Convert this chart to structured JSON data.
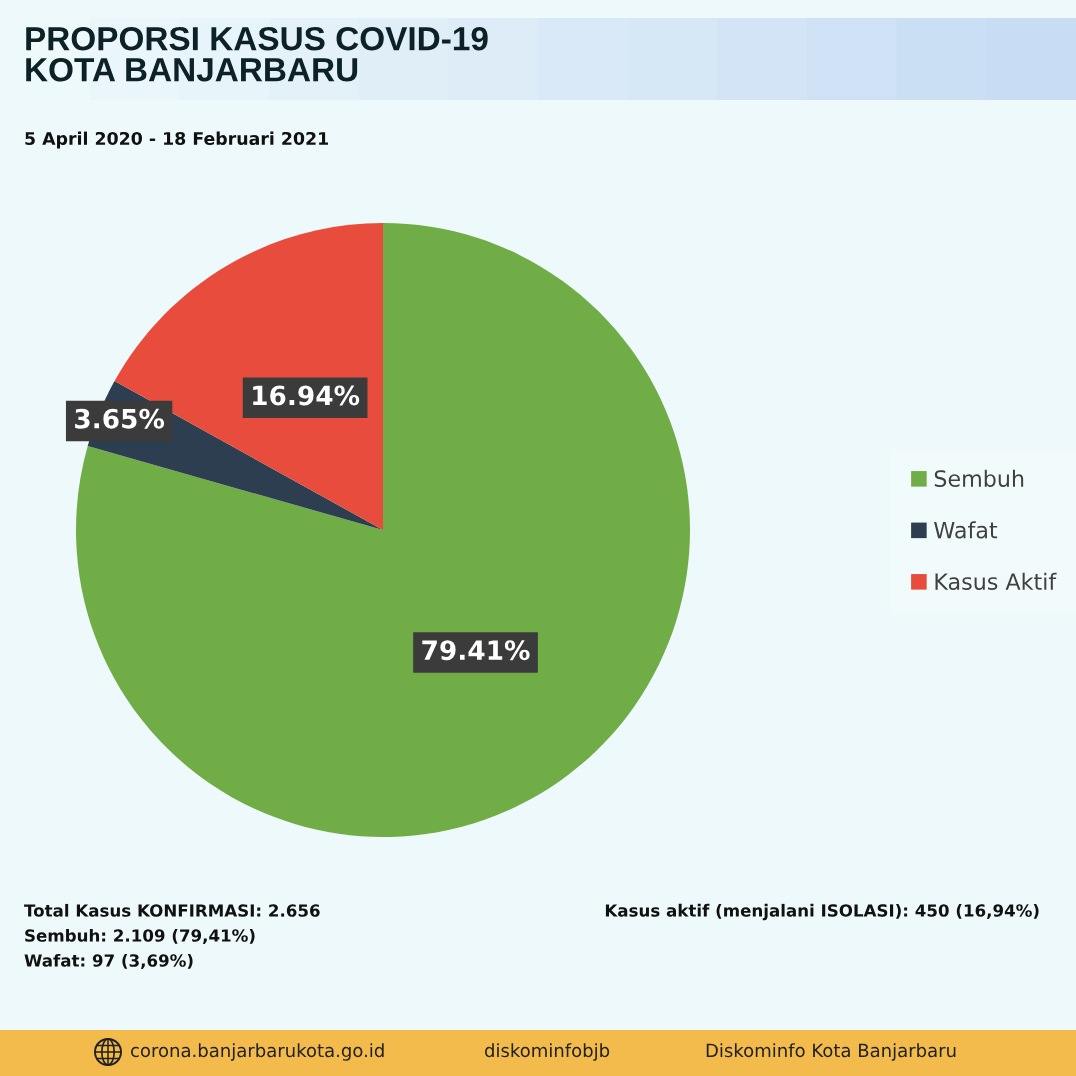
{
  "chart_data": {
    "type": "pie",
    "title": "PROPORSI KASUS COVID-19\nKOTA BANJARBARU",
    "subtitle": "5 April 2020 - 18 Februari 2021",
    "categories": [
      "Sembuh",
      "Wafat",
      "Kasus Aktif"
    ],
    "values": [
      79.41,
      3.65,
      16.94
    ],
    "colors": [
      "#70ad47",
      "#2d3e50",
      "#e74c3c"
    ],
    "value_labels": [
      "79.41%",
      "3.65%",
      "16.94%"
    ],
    "legend": "right",
    "annotations": [
      "Total Kasus KONFIRMASI: 2.656",
      "Sembuh: 2.109 (79,41%)",
      "Wafat: 97 (3,69%)",
      "Kasus aktif (menjalani ISOLASI): 450 (16,94%)",
      "corona.banjarbarukota.go.id",
      "diskominfobjb",
      "Diskominfo Kota Banjarbaru"
    ]
  }
}
